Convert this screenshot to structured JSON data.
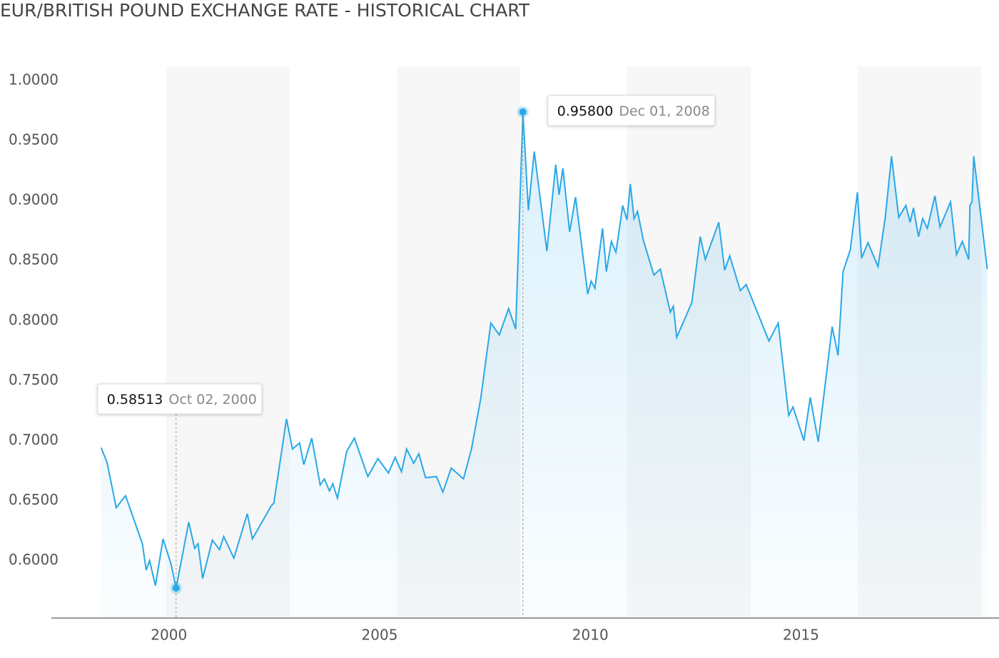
{
  "chart_data": {
    "type": "line",
    "title": "EUR/BRITISH POUND EXCHANGE RATE - HISTORICAL CHART",
    "x": [
      1998.39,
      1998.53,
      1998.75,
      1998.97,
      1999.37,
      1999.46,
      1999.54,
      1999.68,
      1999.86,
      2000.05,
      2000.17,
      2000.47,
      2000.61,
      2000.69,
      2000.8,
      2001.03,
      2001.2,
      2001.3,
      2001.54,
      2001.86,
      2001.98,
      2002.42,
      2002.49,
      2002.79,
      2002.93,
      2003.1,
      2003.2,
      2003.39,
      2003.59,
      2003.69,
      2003.81,
      2003.89,
      2004.0,
      2004.22,
      2004.4,
      2004.72,
      2004.96,
      2005.21,
      2005.37,
      2005.52,
      2005.64,
      2005.81,
      2005.93,
      2006.09,
      2006.35,
      2006.5,
      2006.7,
      2006.99,
      2007.18,
      2007.4,
      2007.64,
      2007.84,
      2008.06,
      2008.23,
      2008.4,
      2008.53,
      2008.67,
      2008.97,
      2009.18,
      2009.26,
      2009.35,
      2009.51,
      2009.65,
      2009.94,
      2010.02,
      2010.11,
      2010.29,
      2010.38,
      2010.5,
      2010.61,
      2010.77,
      2010.87,
      2010.95,
      2011.04,
      2011.12,
      2011.26,
      2011.51,
      2011.66,
      2011.9,
      2011.97,
      2012.05,
      2012.41,
      2012.61,
      2012.73,
      2013.05,
      2013.19,
      2013.31,
      2013.56,
      2013.7,
      2014.24,
      2014.46,
      2014.71,
      2014.81,
      2015.07,
      2015.22,
      2015.41,
      2015.74,
      2015.88,
      2016.0,
      2016.17,
      2016.34,
      2016.44,
      2016.59,
      2016.83,
      2017.0,
      2017.15,
      2017.32,
      2017.49,
      2017.59,
      2017.67,
      2017.79,
      2017.89,
      2018.0,
      2018.18,
      2018.3,
      2018.55,
      2018.69,
      2018.83,
      2018.98,
      2019.01,
      2019.06,
      2019.1,
      2019.42
    ],
    "series": [
      {
        "color": "#29a8e8",
        "values": [
          0.694,
          0.682,
          0.644,
          0.654,
          0.614,
          0.592,
          0.6,
          0.579,
          0.618,
          0.597,
          0.577,
          0.632,
          0.61,
          0.614,
          0.585,
          0.617,
          0.609,
          0.62,
          0.602,
          0.639,
          0.618,
          0.645,
          0.648,
          0.718,
          0.693,
          0.698,
          0.68,
          0.702,
          0.663,
          0.668,
          0.658,
          0.664,
          0.652,
          0.691,
          0.702,
          0.67,
          0.685,
          0.673,
          0.686,
          0.674,
          0.693,
          0.681,
          0.689,
          0.669,
          0.67,
          0.657,
          0.677,
          0.668,
          0.693,
          0.735,
          0.798,
          0.788,
          0.81,
          0.793,
          0.974,
          0.892,
          0.941,
          0.858,
          0.93,
          0.905,
          0.927,
          0.874,
          0.903,
          0.822,
          0.833,
          0.827,
          0.877,
          0.841,
          0.866,
          0.857,
          0.896,
          0.884,
          0.914,
          0.885,
          0.891,
          0.867,
          0.838,
          0.843,
          0.807,
          0.812,
          0.786,
          0.815,
          0.87,
          0.851,
          0.882,
          0.842,
          0.854,
          0.825,
          0.83,
          0.783,
          0.798,
          0.721,
          0.728,
          0.7,
          0.736,
          0.699,
          0.795,
          0.771,
          0.841,
          0.859,
          0.907,
          0.852,
          0.865,
          0.845,
          0.886,
          0.937,
          0.886,
          0.896,
          0.882,
          0.894,
          0.87,
          0.885,
          0.877,
          0.904,
          0.878,
          0.899,
          0.855,
          0.866,
          0.851,
          0.896,
          0.899,
          0.937,
          0.843
        ]
      }
    ],
    "xlim": [
      1997.21,
      2019.7
    ],
    "xticks": [
      2000,
      2005,
      2010,
      2015
    ],
    "ylim": [
      0.552,
      1.012
    ],
    "yticks": [
      {
        "value": 0.6,
        "label": "0.6000"
      },
      {
        "value": 0.65,
        "label": "0.6500"
      },
      {
        "value": 0.7,
        "label": "0.7000"
      },
      {
        "value": 0.75,
        "label": "0.7500"
      },
      {
        "value": 0.8,
        "label": "0.8000"
      },
      {
        "value": 0.85,
        "label": "0.8500"
      },
      {
        "value": 0.9,
        "label": "0.9000"
      },
      {
        "value": 0.95,
        "label": "0.9500"
      },
      {
        "value": 1,
        "label": "1.0000"
      }
    ],
    "grid": false,
    "annotations": [
      {
        "text": "0.58513",
        "date": "Oct 02, 2000"
      },
      {
        "text": "0.95800",
        "date": "Dec 01, 2008"
      }
    ]
  }
}
